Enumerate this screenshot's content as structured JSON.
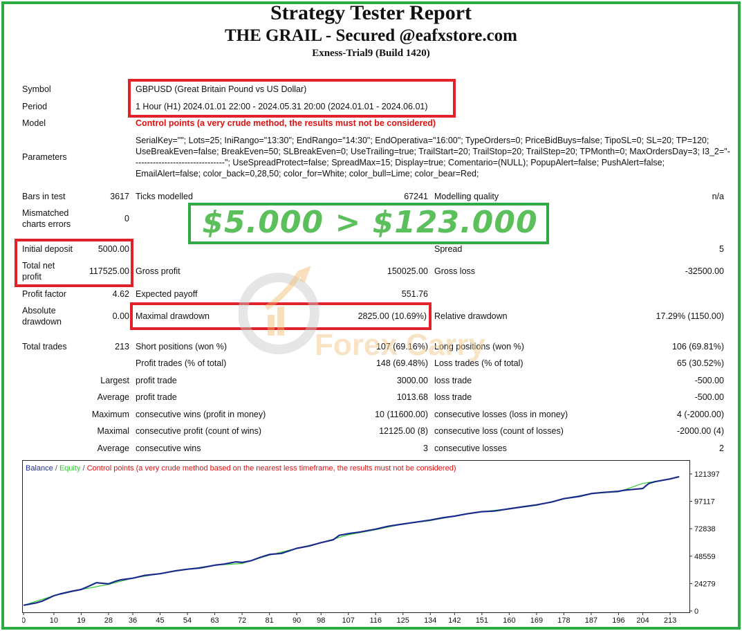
{
  "header": {
    "title": "Strategy Tester Report",
    "subtitle": "THE GRAIL - Secured @eafxstore.com",
    "build": "Exness-Trial9 (Build 1420)"
  },
  "info": {
    "symbol_label": "Symbol",
    "symbol_value": "GBPUSD (Great Britain Pound vs US Dollar)",
    "period_label": "Period",
    "period_value": "1 Hour (H1) 2024.01.01 22:00 - 2024.05.31 20:00 (2024.01.01 - 2024.06.01)",
    "model_label": "Model",
    "model_value": "Control points (a very crude method, the results must not be considered)",
    "parameters_label": "Parameters",
    "parameters_value": "SerialKey=\"\"; Lots=25; IniRango=\"13:30\"; EndRango=\"14:30\"; EndOperativa=\"16:00\"; TypeOrders=0; PriceBidBuys=false; TipoSL=0; SL=20; TP=120; UseBreakEven=false; BreakEven=50; SLBreakEven=0; UseTrailing=true; TrailStart=20; TrailStop=20; TrailStep=20; TPMonth=0; MaxOrdersDay=3; I3_2=\"--------------------------------\"; UseSpreadProtect=false; SpreadMax=15; Display=true; Comentario=(NULL); PopupAlert=false; PushAlert=false; EmailAlert=false; color_back=0,28,50; color_for=White; color_bull=Lime; color_bear=Red;"
  },
  "stats": {
    "bars_label": "Bars in test",
    "bars_value": "3617",
    "ticks_label": "Ticks modelled",
    "ticks_value": "67241",
    "quality_label": "Modelling quality",
    "quality_value": "n/a",
    "mismatch_label_1": "Mismatched",
    "mismatch_label_2": "charts errors",
    "mismatch_value": "0",
    "initial_deposit_label": "Initial deposit",
    "initial_deposit_value": "5000.00",
    "spread_label": "Spread",
    "spread_value": "5",
    "net_profit_label_1": "Total net",
    "net_profit_label_2": "profit",
    "net_profit_value": "117525.00",
    "gross_profit_label": "Gross profit",
    "gross_profit_value": "150025.00",
    "gross_loss_label": "Gross loss",
    "gross_loss_value": "-32500.00",
    "profit_factor_label": "Profit factor",
    "profit_factor_value": "4.62",
    "expected_payoff_label": "Expected payoff",
    "expected_payoff_value": "551.76",
    "abs_dd_label_1": "Absolute",
    "abs_dd_label_2": "drawdown",
    "abs_dd_value": "0.00",
    "max_dd_label": "Maximal drawdown",
    "max_dd_value": "2825.00 (10.69%)",
    "rel_dd_label": "Relative drawdown",
    "rel_dd_value": "17.29% (1150.00)",
    "total_trades_label": "Total trades",
    "total_trades_value": "213",
    "short_label": "Short positions (won %)",
    "short_value": "107 (69.16%)",
    "long_label": "Long positions (won %)",
    "long_value": "106 (69.81%)",
    "profit_trades_label": "Profit trades (% of total)",
    "profit_trades_value": "148 (69.48%)",
    "loss_trades_label": "Loss trades (% of total)",
    "loss_trades_value": "65 (30.52%)",
    "largest_label": "Largest",
    "largest_profit_label": "profit trade",
    "largest_profit_value": "3000.00",
    "largest_loss_label": "loss trade",
    "largest_loss_value": "-500.00",
    "average_label": "Average",
    "average_profit_label": "profit trade",
    "average_profit_value": "1013.68",
    "average_loss_label": "loss trade",
    "average_loss_value": "-500.00",
    "maximum_label": "Maximum",
    "max_cons_wins_label": "consecutive wins (profit in money)",
    "max_cons_wins_value": "10 (11600.00)",
    "max_cons_losses_label": "consecutive losses (loss in money)",
    "max_cons_losses_value": "4 (-2000.00)",
    "maximal_label": "Maximal",
    "maximal_cons_profit_label": "consecutive profit (count of wins)",
    "maximal_cons_profit_value": "12125.00 (8)",
    "maximal_cons_loss_label": "consecutive loss (count of losses)",
    "maximal_cons_loss_value": "-2000.00 (4)",
    "avg_label": "Average",
    "avg_cons_wins_label": "consecutive wins",
    "avg_cons_wins_value": "3",
    "avg_cons_losses_label": "consecutive losses",
    "avg_cons_losses_value": "2"
  },
  "promo": {
    "text": "$5.000 > $123.000",
    "color": "#5bbf5b"
  },
  "watermark": {
    "text": "Forex Carry"
  },
  "colors": {
    "highlight_red": "#e0222a",
    "highlight_green": "#2eaa45",
    "balance": "#1a2a8c",
    "equity": "#33cc33",
    "model_red": "#e01010"
  },
  "chart_data": {
    "type": "line",
    "legend": {
      "balance": "Balance",
      "equity": "Equity",
      "note": "Control points (a very crude method based on the nearest less timeframe, the results must not be considered)",
      "separator": "/"
    },
    "x_ticks": [
      0,
      10,
      19,
      28,
      36,
      45,
      54,
      63,
      72,
      81,
      90,
      98,
      107,
      116,
      125,
      134,
      142,
      151,
      160,
      169,
      178,
      187,
      196,
      204,
      213
    ],
    "y_ticks": [
      0,
      24279,
      48559,
      72838,
      97117,
      121397
    ],
    "ylim": [
      0,
      121397
    ],
    "xlim": [
      0,
      218
    ],
    "grid": false,
    "series": [
      {
        "name": "Balance",
        "x": [
          0,
          4,
          6,
          8,
          10,
          12,
          16,
          19,
          22,
          24,
          28,
          30,
          32,
          36,
          40,
          45,
          50,
          54,
          58,
          63,
          66,
          70,
          72,
          75,
          78,
          81,
          85,
          90,
          94,
          98,
          102,
          104,
          107,
          111,
          116,
          120,
          125,
          130,
          134,
          138,
          142,
          146,
          151,
          155,
          160,
          165,
          169,
          174,
          178,
          183,
          187,
          191,
          196,
          198,
          200,
          204,
          206,
          208,
          213,
          216
        ],
        "y": [
          5000,
          7000,
          8500,
          11000,
          13500,
          15000,
          17500,
          19000,
          22500,
          25000,
          24000,
          26000,
          27500,
          29000,
          31500,
          33000,
          35500,
          37000,
          38000,
          40500,
          41500,
          43500,
          43000,
          44500,
          47500,
          50000,
          51000,
          55500,
          57500,
          60500,
          63000,
          67000,
          68500,
          70000,
          72500,
          75000,
          77000,
          79000,
          80500,
          82500,
          84000,
          86000,
          88000,
          88500,
          90500,
          92500,
          94000,
          96500,
          99500,
          101500,
          104000,
          105000,
          106000,
          107000,
          107500,
          108500,
          113000,
          114500,
          117000,
          119000
        ]
      },
      {
        "name": "Equity",
        "x": [
          0,
          10,
          19,
          28,
          36,
          45,
          54,
          63,
          72,
          81,
          90,
          98,
          107,
          116,
          125,
          134,
          142,
          151,
          160,
          169,
          178,
          187,
          196,
          204,
          213
        ],
        "y": [
          5000,
          13500,
          19000,
          23500,
          29000,
          33000,
          37000,
          40500,
          42000,
          49500,
          55500,
          60500,
          67500,
          72000,
          77000,
          80000,
          84000,
          88000,
          90500,
          93500,
          99500,
          104000,
          105500,
          113000,
          117000
        ]
      }
    ]
  }
}
